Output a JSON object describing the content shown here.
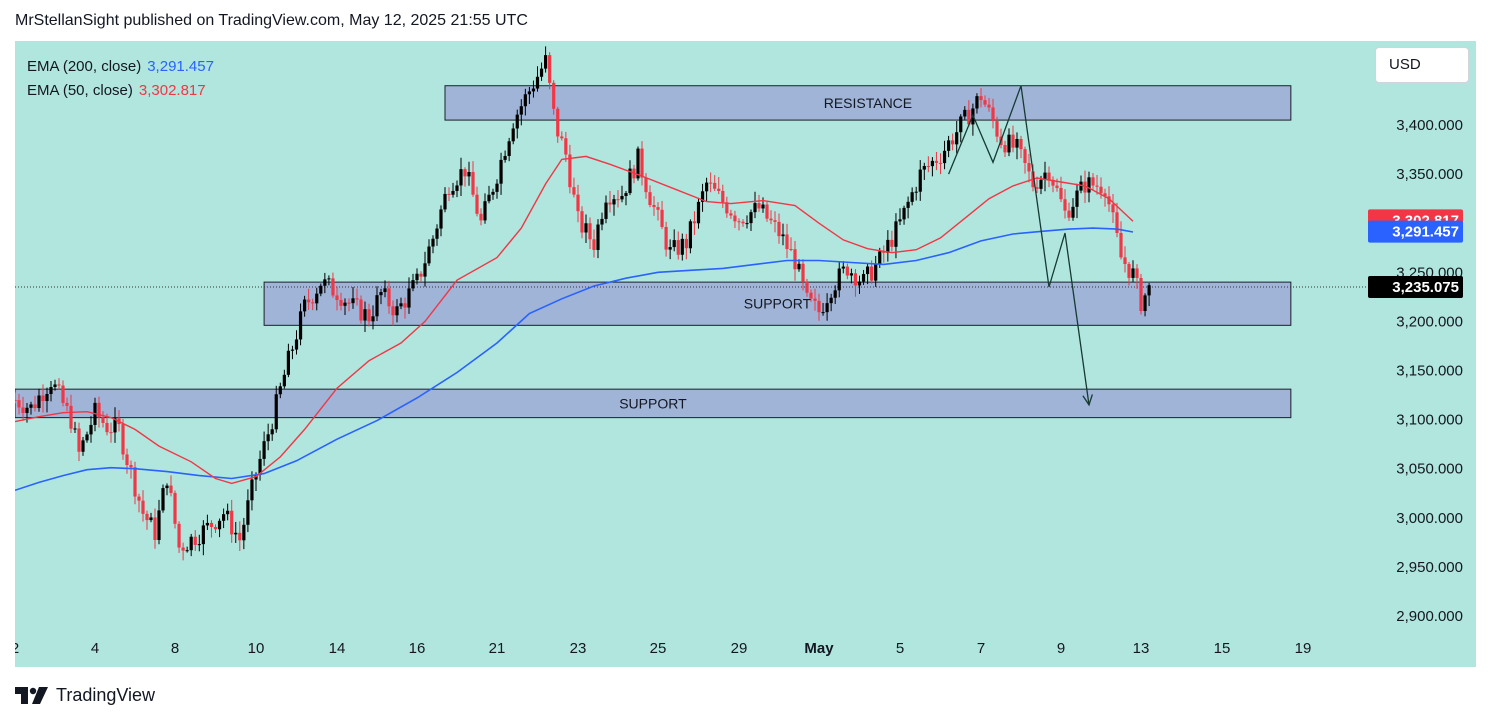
{
  "header": {
    "publisher_line": "MrStellanSight published on TradingView.com, May 12, 2025 21:55 UTC"
  },
  "legend": {
    "ema200_label": "EMA (200, close)",
    "ema200_value": "3,291.457",
    "ema50_label": "EMA (50, close)",
    "ema50_value": "3,302.817"
  },
  "currency_button": "USD",
  "footer": {
    "brand": "TradingView",
    "logo_icon": "tradingview-logo-icon"
  },
  "colors": {
    "background": "#b0e6de",
    "up": "#000000",
    "down": "#f23645",
    "ema50": "#f23645",
    "ema200": "#2962ff",
    "zone_fill": "#9fb4d6",
    "last_price": "#000000"
  },
  "chart_data": {
    "type": "candlestick",
    "title": "",
    "ylim": [
      2870,
      3470
    ],
    "x_ticks": [
      {
        "label": "2",
        "day": 0
      },
      {
        "label": "4",
        "day": 1
      },
      {
        "label": "8",
        "day": 2
      },
      {
        "label": "10",
        "day": 3
      },
      {
        "label": "14",
        "day": 4
      },
      {
        "label": "16",
        "day": 5
      },
      {
        "label": "21",
        "day": 6
      },
      {
        "label": "23",
        "day": 7
      },
      {
        "label": "25",
        "day": 8
      },
      {
        "label": "29",
        "day": 9
      },
      {
        "label": "May",
        "day": 10
      },
      {
        "label": "5",
        "day": 11
      },
      {
        "label": "7",
        "day": 12
      },
      {
        "label": "9",
        "day": 13
      },
      {
        "label": "13",
        "day": 14
      },
      {
        "label": "15",
        "day": 15
      },
      {
        "label": "19",
        "day": 16
      }
    ],
    "y_ticks": [
      "3,400.000",
      "3,350.000",
      "3,250.000",
      "3,200.000",
      "3,150.000",
      "3,100.000",
      "3,050.000",
      "3,000.000",
      "2,950.000",
      "2,900.000"
    ],
    "y_tick_values": [
      3400,
      3350,
      3250,
      3200,
      3150,
      3100,
      3050,
      3000,
      2950,
      2900
    ],
    "price_labels": [
      {
        "text": "3,302.817",
        "value": 3302.817,
        "color": "#f23645"
      },
      {
        "text": "3,291.457",
        "value": 3291.457,
        "color": "#2962ff"
      },
      {
        "text": "3,235.075",
        "value": 3235.075,
        "color": "#000000"
      }
    ],
    "last_price": 3235.075,
    "zones": [
      {
        "label": "RESISTANCE",
        "x0": 5.35,
        "x1": 15.85,
        "y_top": 3440,
        "y_bottom": 3405
      },
      {
        "label": "SUPPORT",
        "x0": 3.1,
        "x1": 15.85,
        "y_top": 3240,
        "y_bottom": 3196
      },
      {
        "label": "SUPPORT",
        "x0": 0,
        "x1": 15.85,
        "y_top": 3131,
        "y_bottom": 3102
      }
    ],
    "projection_path": [
      {
        "day": 11.6,
        "price": 3350
      },
      {
        "day": 11.9,
        "price": 3410
      },
      {
        "day": 12.15,
        "price": 3362
      },
      {
        "day": 12.5,
        "price": 3440
      },
      {
        "day": 12.85,
        "price": 3235
      },
      {
        "day": 13.05,
        "price": 3290
      },
      {
        "day": 13.35,
        "price": 3115
      }
    ],
    "ema50": [
      [
        0,
        3098
      ],
      [
        0.3,
        3103
      ],
      [
        0.6,
        3107
      ],
      [
        0.9,
        3108
      ],
      [
        1.2,
        3102
      ],
      [
        1.5,
        3090
      ],
      [
        1.8,
        3073
      ],
      [
        2.2,
        3057
      ],
      [
        2.5,
        3040
      ],
      [
        2.7,
        3035
      ],
      [
        3,
        3042
      ],
      [
        3.3,
        3062
      ],
      [
        3.6,
        3090
      ],
      [
        4,
        3132
      ],
      [
        4.4,
        3160
      ],
      [
        4.8,
        3178
      ],
      [
        5.1,
        3200
      ],
      [
        5.5,
        3242
      ],
      [
        6,
        3265
      ],
      [
        6.3,
        3295
      ],
      [
        6.6,
        3340
      ],
      [
        6.8,
        3365
      ],
      [
        7.1,
        3368
      ],
      [
        7.4,
        3360
      ],
      [
        7.8,
        3348
      ],
      [
        8.2,
        3335
      ],
      [
        8.6,
        3322
      ],
      [
        8.9,
        3320
      ],
      [
        9.3,
        3323
      ],
      [
        9.7,
        3318
      ],
      [
        10,
        3300
      ],
      [
        10.3,
        3283
      ],
      [
        10.6,
        3274
      ],
      [
        10.9,
        3270
      ],
      [
        11.2,
        3273
      ],
      [
        11.5,
        3285
      ],
      [
        11.8,
        3305
      ],
      [
        12.1,
        3325
      ],
      [
        12.4,
        3338
      ],
      [
        12.7,
        3346
      ],
      [
        13.0,
        3342
      ],
      [
        13.3,
        3338
      ],
      [
        13.6,
        3325
      ],
      [
        13.9,
        3302
      ]
    ],
    "ema200": [
      [
        0,
        3028
      ],
      [
        0.3,
        3036
      ],
      [
        0.6,
        3043
      ],
      [
        0.9,
        3049
      ],
      [
        1.2,
        3051
      ],
      [
        1.5,
        3050
      ],
      [
        1.9,
        3047
      ],
      [
        2.3,
        3043
      ],
      [
        2.7,
        3040
      ],
      [
        3.1,
        3045
      ],
      [
        3.5,
        3058
      ],
      [
        4,
        3080
      ],
      [
        4.5,
        3099
      ],
      [
        5,
        3122
      ],
      [
        5.5,
        3148
      ],
      [
        6,
        3178
      ],
      [
        6.4,
        3208
      ],
      [
        6.8,
        3223
      ],
      [
        7.2,
        3236
      ],
      [
        7.6,
        3244
      ],
      [
        8,
        3250
      ],
      [
        8.4,
        3252
      ],
      [
        8.8,
        3254
      ],
      [
        9.2,
        3258
      ],
      [
        9.6,
        3262
      ],
      [
        10,
        3262
      ],
      [
        10.4,
        3260
      ],
      [
        10.8,
        3258
      ],
      [
        11.2,
        3262
      ],
      [
        11.6,
        3270
      ],
      [
        12,
        3282
      ],
      [
        12.4,
        3289
      ],
      [
        12.8,
        3292
      ],
      [
        13.1,
        3294
      ],
      [
        13.4,
        3295
      ],
      [
        13.7,
        3294
      ],
      [
        13.9,
        3291
      ]
    ],
    "candle_anchors": [
      [
        0,
        3120
      ],
      [
        0.2,
        3112
      ],
      [
        0.45,
        3140
      ],
      [
        0.7,
        3100
      ],
      [
        0.8,
        3065
      ],
      [
        1.0,
        3107
      ],
      [
        1.15,
        3093
      ],
      [
        1.3,
        3090
      ],
      [
        1.4,
        3060
      ],
      [
        1.6,
        3005
      ],
      [
        1.75,
        2985
      ],
      [
        1.9,
        3042
      ],
      [
        2.05,
        2970
      ],
      [
        2.15,
        2975
      ],
      [
        2.4,
        2990
      ],
      [
        2.6,
        3005
      ],
      [
        2.8,
        2978
      ],
      [
        3.0,
        3045
      ],
      [
        3.2,
        3100
      ],
      [
        3.4,
        3160
      ],
      [
        3.6,
        3215
      ],
      [
        3.8,
        3240
      ],
      [
        4.0,
        3230
      ],
      [
        4.2,
        3215
      ],
      [
        4.4,
        3205
      ],
      [
        4.55,
        3228
      ],
      [
        4.75,
        3210
      ],
      [
        5.0,
        3240
      ],
      [
        5.2,
        3285
      ],
      [
        5.4,
        3340
      ],
      [
        5.6,
        3355
      ],
      [
        5.8,
        3300
      ],
      [
        6.0,
        3350
      ],
      [
        6.2,
        3405
      ],
      [
        6.4,
        3435
      ],
      [
        6.6,
        3465
      ],
      [
        6.72,
        3400
      ],
      [
        6.85,
        3370
      ],
      [
        7.0,
        3302
      ],
      [
        7.2,
        3280
      ],
      [
        7.35,
        3330
      ],
      [
        7.55,
        3330
      ],
      [
        7.75,
        3365
      ],
      [
        7.95,
        3315
      ],
      [
        8.15,
        3270
      ],
      [
        8.35,
        3280
      ],
      [
        8.6,
        3340
      ],
      [
        8.8,
        3322
      ],
      [
        9.0,
        3305
      ],
      [
        9.25,
        3315
      ],
      [
        9.5,
        3290
      ],
      [
        9.7,
        3262
      ],
      [
        9.85,
        3220
      ],
      [
        10.0,
        3210
      ],
      [
        10.15,
        3235
      ],
      [
        10.35,
        3255
      ],
      [
        10.55,
        3240
      ],
      [
        10.75,
        3262
      ],
      [
        11.0,
        3300
      ],
      [
        11.25,
        3350
      ],
      [
        11.5,
        3370
      ],
      [
        11.8,
        3405
      ],
      [
        12.0,
        3430
      ],
      [
        12.25,
        3385
      ],
      [
        12.45,
        3375
      ],
      [
        12.65,
        3340
      ],
      [
        12.85,
        3355
      ],
      [
        13.05,
        3310
      ],
      [
        13.3,
        3340
      ],
      [
        13.55,
        3338
      ],
      [
        13.75,
        3265
      ],
      [
        13.9,
        3248
      ],
      [
        14.0,
        3220
      ],
      [
        14.12,
        3235
      ]
    ]
  }
}
